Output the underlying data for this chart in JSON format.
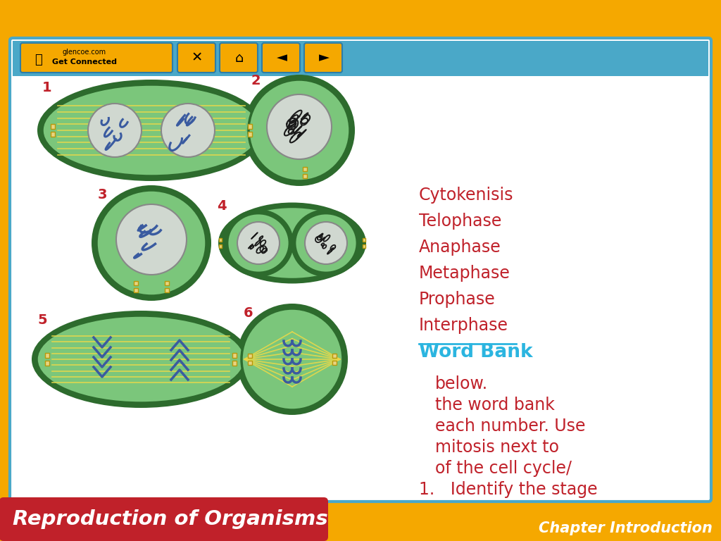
{
  "title_left": "Reproduction of Organisms",
  "title_right": "Chapter Introduction",
  "bg_outer": "#F5A800",
  "bg_inner": "#FFFFFF",
  "title_left_bg": "#C0212A",
  "title_text_color": "#FFFFFF",
  "border_color_outer": "#4AA8C8",
  "question_color": "#C0212A",
  "word_bank_label": "Word Bank",
  "word_bank_color": "#2BB5E0",
  "word_bank_items": [
    "Interphase",
    "Prophase",
    "Metaphase",
    "Anaphase",
    "Telophase",
    "Cytokenisis"
  ],
  "word_bank_item_color": "#C0212A",
  "cell_outer_color": "#2D6B2D",
  "cell_inner_color": "#7BC67B",
  "nucleus_color": "#D0D8D0",
  "nucleus_border": "#888888",
  "chromosome_color": "#3A5BA0",
  "spindle_color": "#E8D84A",
  "footer_bg": "#4AA8C8",
  "number_color": "#C0212A"
}
